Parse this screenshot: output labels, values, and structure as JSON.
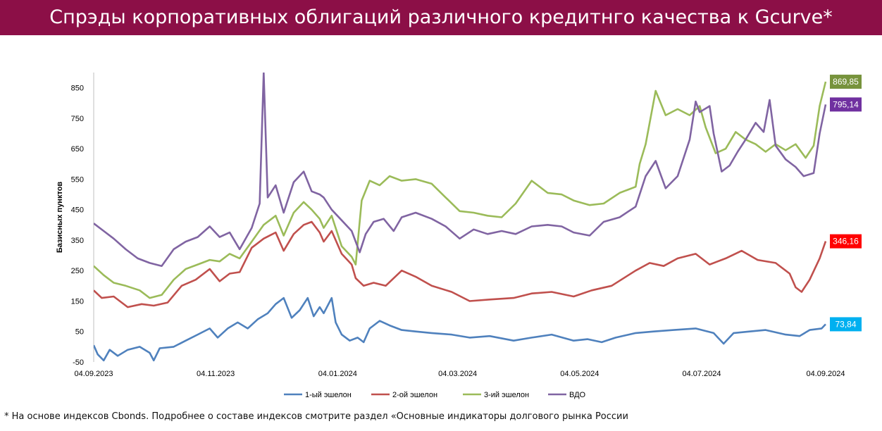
{
  "title": "Спрэды корпоративных облигаций различного кредитнго качества к Gcurve*",
  "footnote": "* На основе индексов Cbonds. Подробнее о составе индексов смотрите раздел «Основные индикаторы долгового рынка России",
  "chart_data": {
    "type": "line",
    "ylabel": "Базисных пунктов",
    "ylim": [
      -50,
      900
    ],
    "yticks": [
      -50,
      50,
      150,
      250,
      350,
      450,
      550,
      650,
      750,
      850
    ],
    "xlim": [
      "2023-09-04",
      "2024-09-04"
    ],
    "xticks": [
      "04.09.2023",
      "04.11.2023",
      "04.01.2024",
      "04.03.2024",
      "04.05.2024",
      "04.07.2024",
      "04.09.2024"
    ],
    "legend_position": "bottom",
    "series": [
      {
        "name": "1-ый эшелон",
        "color": "#4f81bd",
        "end_label": "73,84",
        "label_color": "#00b0f0",
        "points": [
          [
            "2023-09-04",
            5
          ],
          [
            "2023-09-06",
            -25
          ],
          [
            "2023-09-09",
            -45
          ],
          [
            "2023-09-12",
            -10
          ],
          [
            "2023-09-16",
            -30
          ],
          [
            "2023-09-21",
            -10
          ],
          [
            "2023-09-27",
            0
          ],
          [
            "2023-10-02",
            -20
          ],
          [
            "2023-10-04",
            -45
          ],
          [
            "2023-10-07",
            -5
          ],
          [
            "2023-10-14",
            0
          ],
          [
            "2023-10-20",
            20
          ],
          [
            "2023-10-26",
            40
          ],
          [
            "2023-11-01",
            60
          ],
          [
            "2023-11-05",
            30
          ],
          [
            "2023-11-10",
            60
          ],
          [
            "2023-11-15",
            80
          ],
          [
            "2023-11-20",
            60
          ],
          [
            "2023-11-25",
            90
          ],
          [
            "2023-11-30",
            110
          ],
          [
            "2023-12-04",
            140
          ],
          [
            "2023-12-08",
            160
          ],
          [
            "2023-12-12",
            95
          ],
          [
            "2023-12-16",
            120
          ],
          [
            "2023-12-20",
            160
          ],
          [
            "2023-12-23",
            100
          ],
          [
            "2023-12-26",
            130
          ],
          [
            "2023-12-28",
            110
          ],
          [
            "2024-01-01",
            160
          ],
          [
            "2024-01-03",
            80
          ],
          [
            "2024-01-06",
            40
          ],
          [
            "2024-01-10",
            20
          ],
          [
            "2024-01-14",
            30
          ],
          [
            "2024-01-17",
            15
          ],
          [
            "2024-01-20",
            60
          ],
          [
            "2024-01-25",
            85
          ],
          [
            "2024-01-30",
            70
          ],
          [
            "2024-02-05",
            55
          ],
          [
            "2024-02-12",
            50
          ],
          [
            "2024-02-20",
            45
          ],
          [
            "2024-03-01",
            40
          ],
          [
            "2024-03-10",
            30
          ],
          [
            "2024-03-20",
            35
          ],
          [
            "2024-04-01",
            20
          ],
          [
            "2024-04-10",
            30
          ],
          [
            "2024-04-20",
            40
          ],
          [
            "2024-05-01",
            20
          ],
          [
            "2024-05-08",
            25
          ],
          [
            "2024-05-15",
            15
          ],
          [
            "2024-05-22",
            30
          ],
          [
            "2024-06-01",
            45
          ],
          [
            "2024-06-10",
            50
          ],
          [
            "2024-06-20",
            55
          ],
          [
            "2024-07-01",
            60
          ],
          [
            "2024-07-10",
            45
          ],
          [
            "2024-07-15",
            10
          ],
          [
            "2024-07-20",
            45
          ],
          [
            "2024-07-28",
            50
          ],
          [
            "2024-08-05",
            55
          ],
          [
            "2024-08-15",
            40
          ],
          [
            "2024-08-22",
            35
          ],
          [
            "2024-08-27",
            55
          ],
          [
            "2024-09-02",
            60
          ],
          [
            "2024-09-04",
            73.84
          ]
        ]
      },
      {
        "name": "2-ой эшелон",
        "color": "#c0504d",
        "end_label": "346,16",
        "label_color": "#ff0000",
        "points": [
          [
            "2023-09-04",
            185
          ],
          [
            "2023-09-08",
            160
          ],
          [
            "2023-09-14",
            165
          ],
          [
            "2023-09-21",
            130
          ],
          [
            "2023-09-28",
            140
          ],
          [
            "2023-10-04",
            135
          ],
          [
            "2023-10-11",
            145
          ],
          [
            "2023-10-18",
            200
          ],
          [
            "2023-10-25",
            220
          ],
          [
            "2023-11-01",
            255
          ],
          [
            "2023-11-06",
            215
          ],
          [
            "2023-11-11",
            240
          ],
          [
            "2023-11-16",
            245
          ],
          [
            "2023-11-22",
            325
          ],
          [
            "2023-11-28",
            355
          ],
          [
            "2023-12-04",
            375
          ],
          [
            "2023-12-08",
            315
          ],
          [
            "2023-12-13",
            370
          ],
          [
            "2023-12-18",
            400
          ],
          [
            "2023-12-22",
            410
          ],
          [
            "2023-12-26",
            375
          ],
          [
            "2023-12-28",
            345
          ],
          [
            "2024-01-01",
            380
          ],
          [
            "2024-01-06",
            305
          ],
          [
            "2024-01-11",
            270
          ],
          [
            "2024-01-13",
            225
          ],
          [
            "2024-01-17",
            200
          ],
          [
            "2024-01-22",
            210
          ],
          [
            "2024-01-28",
            200
          ],
          [
            "2024-02-05",
            250
          ],
          [
            "2024-02-12",
            230
          ],
          [
            "2024-02-20",
            200
          ],
          [
            "2024-03-01",
            180
          ],
          [
            "2024-03-10",
            150
          ],
          [
            "2024-03-20",
            155
          ],
          [
            "2024-04-01",
            160
          ],
          [
            "2024-04-10",
            175
          ],
          [
            "2024-04-20",
            180
          ],
          [
            "2024-05-01",
            165
          ],
          [
            "2024-05-10",
            185
          ],
          [
            "2024-05-20",
            200
          ],
          [
            "2024-06-01",
            250
          ],
          [
            "2024-06-08",
            275
          ],
          [
            "2024-06-15",
            265
          ],
          [
            "2024-06-22",
            290
          ],
          [
            "2024-07-01",
            305
          ],
          [
            "2024-07-08",
            270
          ],
          [
            "2024-07-16",
            290
          ],
          [
            "2024-07-24",
            315
          ],
          [
            "2024-08-01",
            285
          ],
          [
            "2024-08-10",
            275
          ],
          [
            "2024-08-17",
            240
          ],
          [
            "2024-08-20",
            195
          ],
          [
            "2024-08-23",
            180
          ],
          [
            "2024-08-27",
            220
          ],
          [
            "2024-09-01",
            290
          ],
          [
            "2024-09-04",
            346.16
          ]
        ]
      },
      {
        "name": "3-ий эшелон",
        "color": "#9bbb59",
        "end_label": "869,85",
        "label_color": "#77933c",
        "points": [
          [
            "2023-09-04",
            265
          ],
          [
            "2023-09-09",
            235
          ],
          [
            "2023-09-14",
            210
          ],
          [
            "2023-09-20",
            200
          ],
          [
            "2023-09-27",
            185
          ],
          [
            "2023-10-02",
            160
          ],
          [
            "2023-10-08",
            170
          ],
          [
            "2023-10-14",
            220
          ],
          [
            "2023-10-20",
            255
          ],
          [
            "2023-10-26",
            270
          ],
          [
            "2023-11-01",
            285
          ],
          [
            "2023-11-06",
            280
          ],
          [
            "2023-11-11",
            305
          ],
          [
            "2023-11-16",
            290
          ],
          [
            "2023-11-22",
            345
          ],
          [
            "2023-11-28",
            400
          ],
          [
            "2023-12-04",
            430
          ],
          [
            "2023-12-08",
            365
          ],
          [
            "2023-12-13",
            440
          ],
          [
            "2023-12-18",
            475
          ],
          [
            "2023-12-22",
            450
          ],
          [
            "2023-12-26",
            420
          ],
          [
            "2023-12-28",
            390
          ],
          [
            "2024-01-01",
            430
          ],
          [
            "2024-01-06",
            330
          ],
          [
            "2024-01-11",
            295
          ],
          [
            "2024-01-13",
            270
          ],
          [
            "2024-01-16",
            480
          ],
          [
            "2024-01-20",
            545
          ],
          [
            "2024-01-25",
            530
          ],
          [
            "2024-01-30",
            560
          ],
          [
            "2024-02-05",
            545
          ],
          [
            "2024-02-12",
            550
          ],
          [
            "2024-02-20",
            535
          ],
          [
            "2024-02-27",
            490
          ],
          [
            "2024-03-05",
            445
          ],
          [
            "2024-03-12",
            440
          ],
          [
            "2024-03-19",
            430
          ],
          [
            "2024-03-26",
            425
          ],
          [
            "2024-04-02",
            470
          ],
          [
            "2024-04-10",
            545
          ],
          [
            "2024-04-18",
            505
          ],
          [
            "2024-04-25",
            500
          ],
          [
            "2024-05-01",
            480
          ],
          [
            "2024-05-09",
            465
          ],
          [
            "2024-05-16",
            470
          ],
          [
            "2024-05-24",
            505
          ],
          [
            "2024-06-01",
            525
          ],
          [
            "2024-06-03",
            600
          ],
          [
            "2024-06-06",
            665
          ],
          [
            "2024-06-11",
            840
          ],
          [
            "2024-06-16",
            760
          ],
          [
            "2024-06-22",
            780
          ],
          [
            "2024-06-28",
            760
          ],
          [
            "2024-07-03",
            790
          ],
          [
            "2024-07-06",
            720
          ],
          [
            "2024-07-11",
            635
          ],
          [
            "2024-07-16",
            650
          ],
          [
            "2024-07-21",
            705
          ],
          [
            "2024-07-26",
            680
          ],
          [
            "2024-07-31",
            665
          ],
          [
            "2024-08-05",
            640
          ],
          [
            "2024-08-10",
            665
          ],
          [
            "2024-08-15",
            645
          ],
          [
            "2024-08-20",
            665
          ],
          [
            "2024-08-25",
            620
          ],
          [
            "2024-08-29",
            660
          ],
          [
            "2024-09-01",
            790
          ],
          [
            "2024-09-04",
            869.85
          ]
        ]
      },
      {
        "name": "ВДО",
        "color": "#8064a2",
        "end_label": "795,14",
        "label_color": "#7030a0",
        "points": [
          [
            "2023-09-04",
            405
          ],
          [
            "2023-09-09",
            380
          ],
          [
            "2023-09-14",
            355
          ],
          [
            "2023-09-20",
            320
          ],
          [
            "2023-09-26",
            290
          ],
          [
            "2023-10-02",
            275
          ],
          [
            "2023-10-08",
            265
          ],
          [
            "2023-10-14",
            320
          ],
          [
            "2023-10-20",
            345
          ],
          [
            "2023-10-26",
            360
          ],
          [
            "2023-11-01",
            395
          ],
          [
            "2023-11-06",
            360
          ],
          [
            "2023-11-11",
            375
          ],
          [
            "2023-11-16",
            320
          ],
          [
            "2023-11-22",
            390
          ],
          [
            "2023-11-26",
            470
          ],
          [
            "2023-11-28",
            900
          ],
          [
            "2023-11-30",
            490
          ],
          [
            "2023-12-04",
            530
          ],
          [
            "2023-12-08",
            440
          ],
          [
            "2023-12-13",
            540
          ],
          [
            "2023-12-18",
            575
          ],
          [
            "2023-12-22",
            510
          ],
          [
            "2023-12-26",
            500
          ],
          [
            "2023-12-28",
            490
          ],
          [
            "2024-01-01",
            450
          ],
          [
            "2024-01-06",
            415
          ],
          [
            "2024-01-11",
            380
          ],
          [
            "2024-01-15",
            310
          ],
          [
            "2024-01-18",
            370
          ],
          [
            "2024-01-22",
            410
          ],
          [
            "2024-01-27",
            420
          ],
          [
            "2024-02-01",
            380
          ],
          [
            "2024-02-05",
            425
          ],
          [
            "2024-02-12",
            440
          ],
          [
            "2024-02-20",
            420
          ],
          [
            "2024-02-27",
            395
          ],
          [
            "2024-03-05",
            355
          ],
          [
            "2024-03-12",
            385
          ],
          [
            "2024-03-19",
            370
          ],
          [
            "2024-03-26",
            380
          ],
          [
            "2024-04-02",
            370
          ],
          [
            "2024-04-10",
            395
          ],
          [
            "2024-04-18",
            400
          ],
          [
            "2024-04-25",
            395
          ],
          [
            "2024-05-01",
            375
          ],
          [
            "2024-05-09",
            365
          ],
          [
            "2024-05-16",
            410
          ],
          [
            "2024-05-24",
            425
          ],
          [
            "2024-06-01",
            460
          ],
          [
            "2024-06-06",
            560
          ],
          [
            "2024-06-11",
            610
          ],
          [
            "2024-06-16",
            520
          ],
          [
            "2024-06-22",
            560
          ],
          [
            "2024-06-28",
            680
          ],
          [
            "2024-07-01",
            805
          ],
          [
            "2024-07-03",
            770
          ],
          [
            "2024-07-08",
            790
          ],
          [
            "2024-07-10",
            700
          ],
          [
            "2024-07-14",
            575
          ],
          [
            "2024-07-18",
            595
          ],
          [
            "2024-07-22",
            640
          ],
          [
            "2024-07-26",
            680
          ],
          [
            "2024-07-31",
            735
          ],
          [
            "2024-08-04",
            705
          ],
          [
            "2024-08-07",
            810
          ],
          [
            "2024-08-10",
            660
          ],
          [
            "2024-08-15",
            615
          ],
          [
            "2024-08-20",
            590
          ],
          [
            "2024-08-24",
            560
          ],
          [
            "2024-08-29",
            570
          ],
          [
            "2024-09-01",
            700
          ],
          [
            "2024-09-04",
            795.14
          ]
        ]
      }
    ]
  }
}
